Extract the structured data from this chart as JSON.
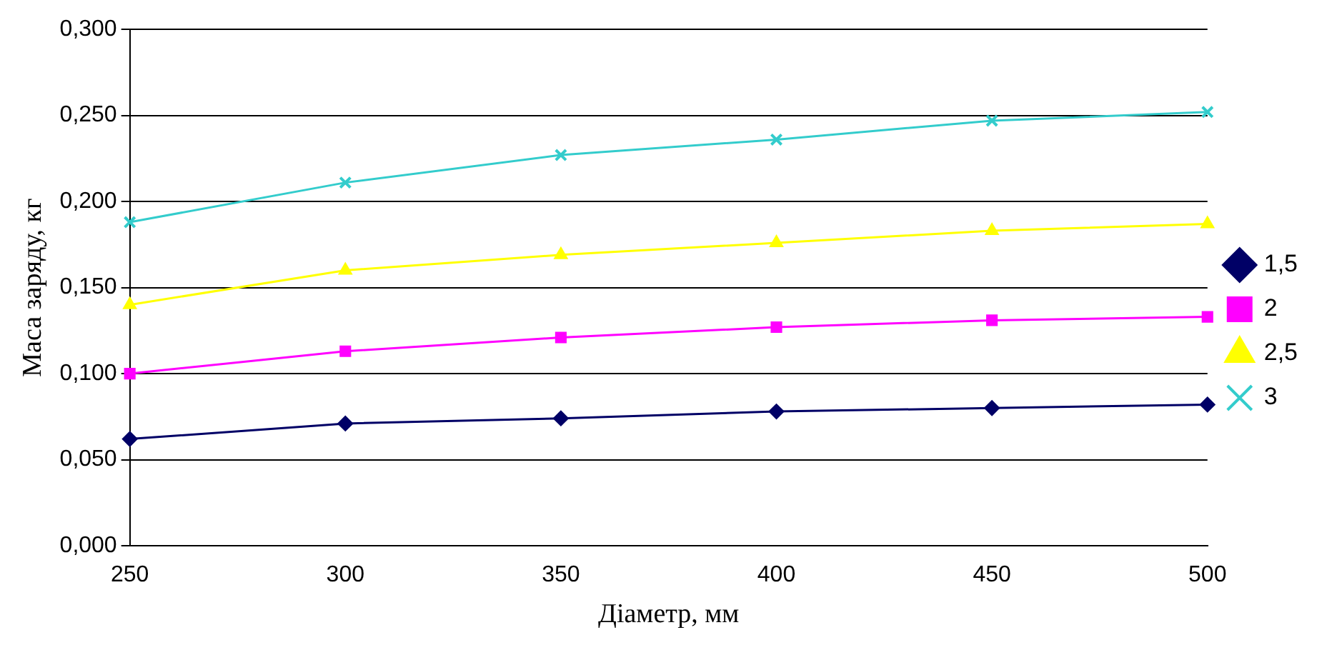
{
  "chart_data": {
    "type": "line",
    "xlabel": "Діаметр, мм",
    "ylabel": "Маса заряду, кг",
    "categories": [
      "250",
      "300",
      "350",
      "400",
      "450",
      "500"
    ],
    "series": [
      {
        "name": "1,5",
        "color": "#000066",
        "marker": "diamond",
        "values": [
          0.062,
          0.071,
          0.074,
          0.078,
          0.08,
          0.082
        ]
      },
      {
        "name": "2",
        "color": "#ff00ff",
        "marker": "square",
        "values": [
          0.1,
          0.113,
          0.121,
          0.127,
          0.131,
          0.133
        ]
      },
      {
        "name": "2,5",
        "color": "#ffff00",
        "marker": "triangle",
        "values": [
          0.14,
          0.16,
          0.169,
          0.176,
          0.183,
          0.187
        ]
      },
      {
        "name": "3",
        "color": "#33cccc",
        "marker": "cross",
        "values": [
          0.188,
          0.211,
          0.227,
          0.236,
          0.247,
          0.252
        ]
      }
    ],
    "ylim": [
      0,
      0.3
    ],
    "yticks": [
      {
        "value": 0,
        "label": "0,000"
      },
      {
        "value": 0.05,
        "label": "0,050"
      },
      {
        "value": 0.1,
        "label": "0,100"
      },
      {
        "value": 0.15,
        "label": "0,150"
      },
      {
        "value": 0.2,
        "label": "0,200"
      },
      {
        "value": 0.25,
        "label": "0,250"
      },
      {
        "value": 0.3,
        "label": "0,300"
      }
    ],
    "grid": "y",
    "legend": "right",
    "line_style": "solid"
  }
}
